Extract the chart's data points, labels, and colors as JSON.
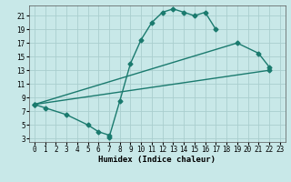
{
  "xlabel": "Humidex (Indice chaleur)",
  "bg_color": "#c8e8e8",
  "line_color": "#1a7a6e",
  "grid_color": "#aacece",
  "xlim": [
    -0.5,
    23.5
  ],
  "ylim": [
    2.5,
    22.5
  ],
  "xticks": [
    0,
    1,
    2,
    3,
    4,
    5,
    6,
    7,
    8,
    9,
    10,
    11,
    12,
    13,
    14,
    15,
    16,
    17,
    18,
    19,
    20,
    21,
    22,
    23
  ],
  "yticks": [
    3,
    5,
    7,
    9,
    11,
    13,
    15,
    17,
    19,
    21
  ],
  "curve1_x": [
    0,
    1,
    3,
    5,
    6,
    7,
    7,
    8,
    9,
    10,
    11,
    12,
    13,
    14,
    15,
    16,
    17
  ],
  "curve1_y": [
    8,
    7.5,
    6.5,
    5,
    4,
    3.5,
    3.2,
    8.5,
    14,
    17.5,
    20,
    21.5,
    22,
    21.5,
    21,
    21.5,
    19
  ],
  "curve2_x": [
    0,
    19,
    21,
    22
  ],
  "curve2_y": [
    8,
    17,
    15.5,
    13.5
  ],
  "curve3_x": [
    0,
    22
  ],
  "curve3_y": [
    8,
    13
  ],
  "markersize": 2.5,
  "linewidth": 1.0,
  "xlabel_fontsize": 6.5,
  "tick_fontsize": 5.5
}
